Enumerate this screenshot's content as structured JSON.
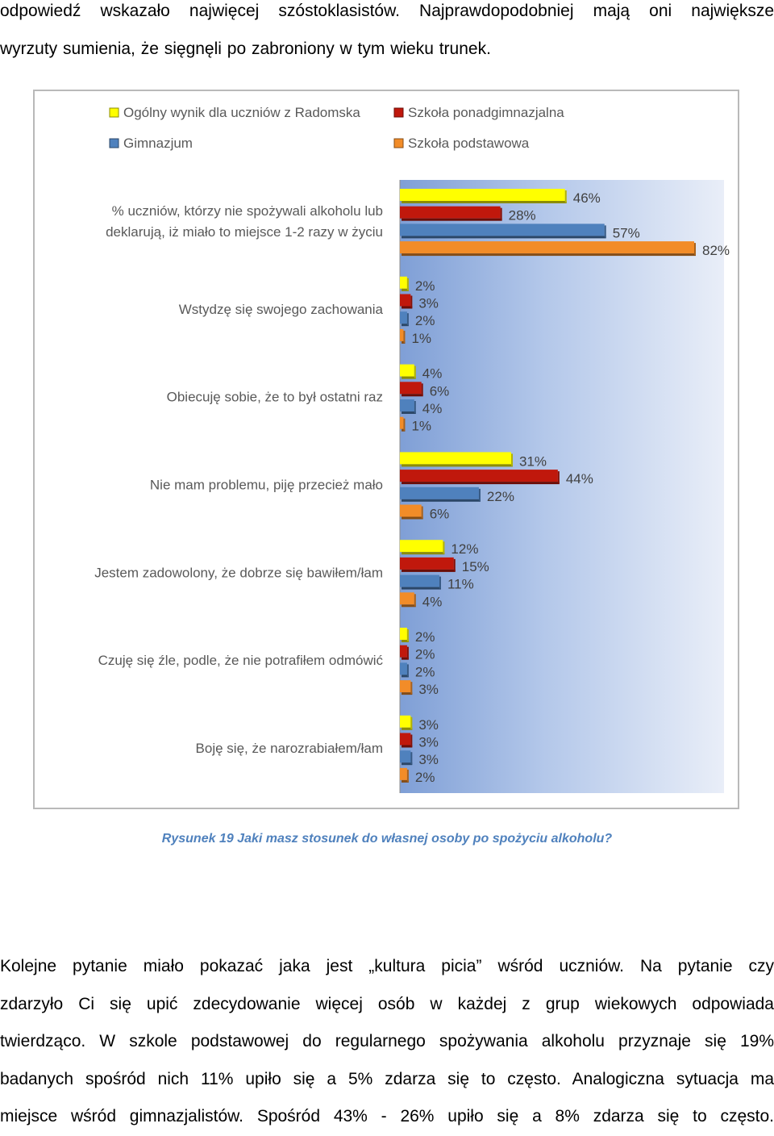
{
  "top_paragraph": {
    "lines": [
      "odpowiedź wskazało najwięcej szóstoklasistów. Najprawdopodobniej mają oni największe",
      "wyrzuty sumienia, że sięgnęli po zabroniony w tym wieku trunek."
    ]
  },
  "chart_data": {
    "type": "bar",
    "orientation": "horizontal",
    "categories": [
      [
        "% uczniów, którzy nie spożywali alkoholu lub",
        "deklarują, iż miało to miejsce 1-2 razy w życiu"
      ],
      [
        "Wstydzę się swojego zachowania"
      ],
      [
        "Obiecuję sobie, że to był ostatni raz"
      ],
      [
        "Nie mam problemu, piję przecież mało"
      ],
      [
        "Jestem zadowolony, że dobrze się bawiłem/łam"
      ],
      [
        "Czuję się źle, podle, że nie potrafiłem odmówić"
      ],
      [
        "Boję się, że narozrabiałem/łam"
      ]
    ],
    "series": [
      {
        "name": "Ogólny wynik dla uczniów z Radomska",
        "color": "#ffff00",
        "values": [
          46,
          2,
          4,
          31,
          12,
          2,
          3
        ]
      },
      {
        "name": "Szkoła ponadgimnazjalna",
        "color": "#c0180c",
        "values": [
          28,
          3,
          6,
          44,
          15,
          2,
          3
        ]
      },
      {
        "name": "Gimnazjum",
        "color": "#4f81bd",
        "values": [
          57,
          2,
          4,
          22,
          11,
          2,
          3
        ]
      },
      {
        "name": "Szkoła podstawowa",
        "color": "#f28c28",
        "values": [
          82,
          1,
          1,
          6,
          4,
          3,
          2
        ]
      }
    ],
    "value_suffix": "%",
    "xlim": [
      0,
      82
    ],
    "legend_position": "top",
    "plot_background": "#a3b9e0"
  },
  "caption": "Rysunek 19 Jaki masz stosunek do własnej osoby po spożyciu alkoholu?",
  "bottom_paragraph": {
    "lines": [
      "Kolejne pytanie miało pokazać jaka jest „kultura picia” wśród uczniów. Na pytanie czy",
      "zdarzyło Ci się upić zdecydowanie więcej osób w każdej z grup wiekowych odpowiada",
      "twierdząco. W szkole podstawowej do regularnego spożywania alkoholu przyznaje się 19%",
      "badanych spośród nich 11% upiło się a 5% zdarza się to często. Analogiczna sytuacja ma",
      "miejsce wśród gimnazjalistów. Spośród 43% - 26% upiło się a 8% zdarza się to często."
    ]
  }
}
